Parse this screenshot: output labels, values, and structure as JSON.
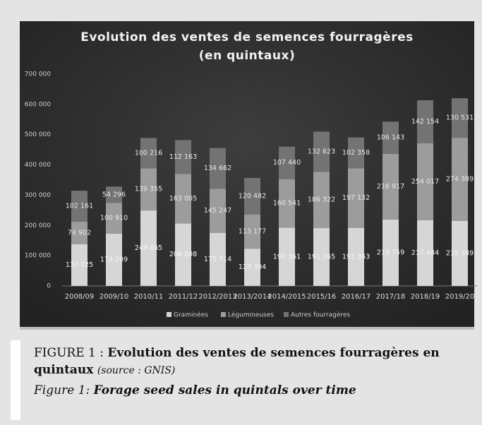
{
  "chart_data": {
    "type": "stacked-bar",
    "title": "Evolution des ventes de semences fourragères (en quintaux)",
    "categories": [
      "2008/09",
      "2009/10",
      "2010/11",
      "2011/12",
      "2012/2013",
      "2013/2014",
      "2014/2015",
      "2015/16",
      "2016/17",
      "2017/18",
      "2018/19",
      "2019/20"
    ],
    "series": [
      {
        "name": "Graminées",
        "color": "#d6d6d6",
        "values": [
          137725,
          173209,
          249465,
          206808,
          175714,
          123304,
          192361,
          191165,
          191363,
          219759,
          217484,
          215389
        ],
        "value_labels": [
          "137 725",
          "173 209",
          "249 465",
          "206 808",
          "175 714",
          "123 304",
          "192 361",
          "191 165",
          "191 363",
          "219 759",
          "217 484",
          "215 389"
        ]
      },
      {
        "name": "Légumineuses",
        "color": "#9c9c9c",
        "values": [
          74902,
          100910,
          139355,
          163005,
          145247,
          113177,
          160541,
          186322,
          197132,
          216917,
          254017,
          274389
        ],
        "value_labels": [
          "74 902",
          "100 910",
          "139 355",
          "163 005",
          "145 247",
          "113 177",
          "160 541",
          "186 322",
          "197 132",
          "216 917",
          "254 017",
          "274 389"
        ]
      },
      {
        "name": "Autres fourragères",
        "color": "#737373",
        "values": [
          102161,
          54296,
          100216,
          112163,
          134662,
          120482,
          107440,
          132623,
          102358,
          106143,
          142154,
          130531
        ],
        "value_labels": [
          "102 161",
          "54 296",
          "100 216",
          "112 163",
          "134 662",
          "120 482",
          "107 440",
          "132 623",
          "102 358",
          "106 143",
          "142 154",
          "130 531"
        ]
      }
    ],
    "ylim": [
      0,
      700000
    ],
    "yticks": [
      0,
      {
        "value": 100000,
        "label": "100 000"
      },
      {
        "value": 200000,
        "label": "200 000"
      },
      {
        "value": 300000,
        "label": "300 000"
      },
      {
        "value": 400000,
        "label": "400 000"
      },
      {
        "value": 500000,
        "label": "500 000"
      },
      {
        "value": 600000,
        "label": "600 000"
      },
      {
        "value": 700000,
        "label": "700 000"
      }
    ],
    "grid": false,
    "legend": "bottom"
  },
  "caption": {
    "prefix": "FIGURE 1 : ",
    "title_fr": "Evolution des ventes de semences fourragères en quintaux",
    "source": "(source : GNIS)",
    "prefix_en": "Figure 1:",
    "title_en": "Forage seed sales in quintals over time"
  }
}
